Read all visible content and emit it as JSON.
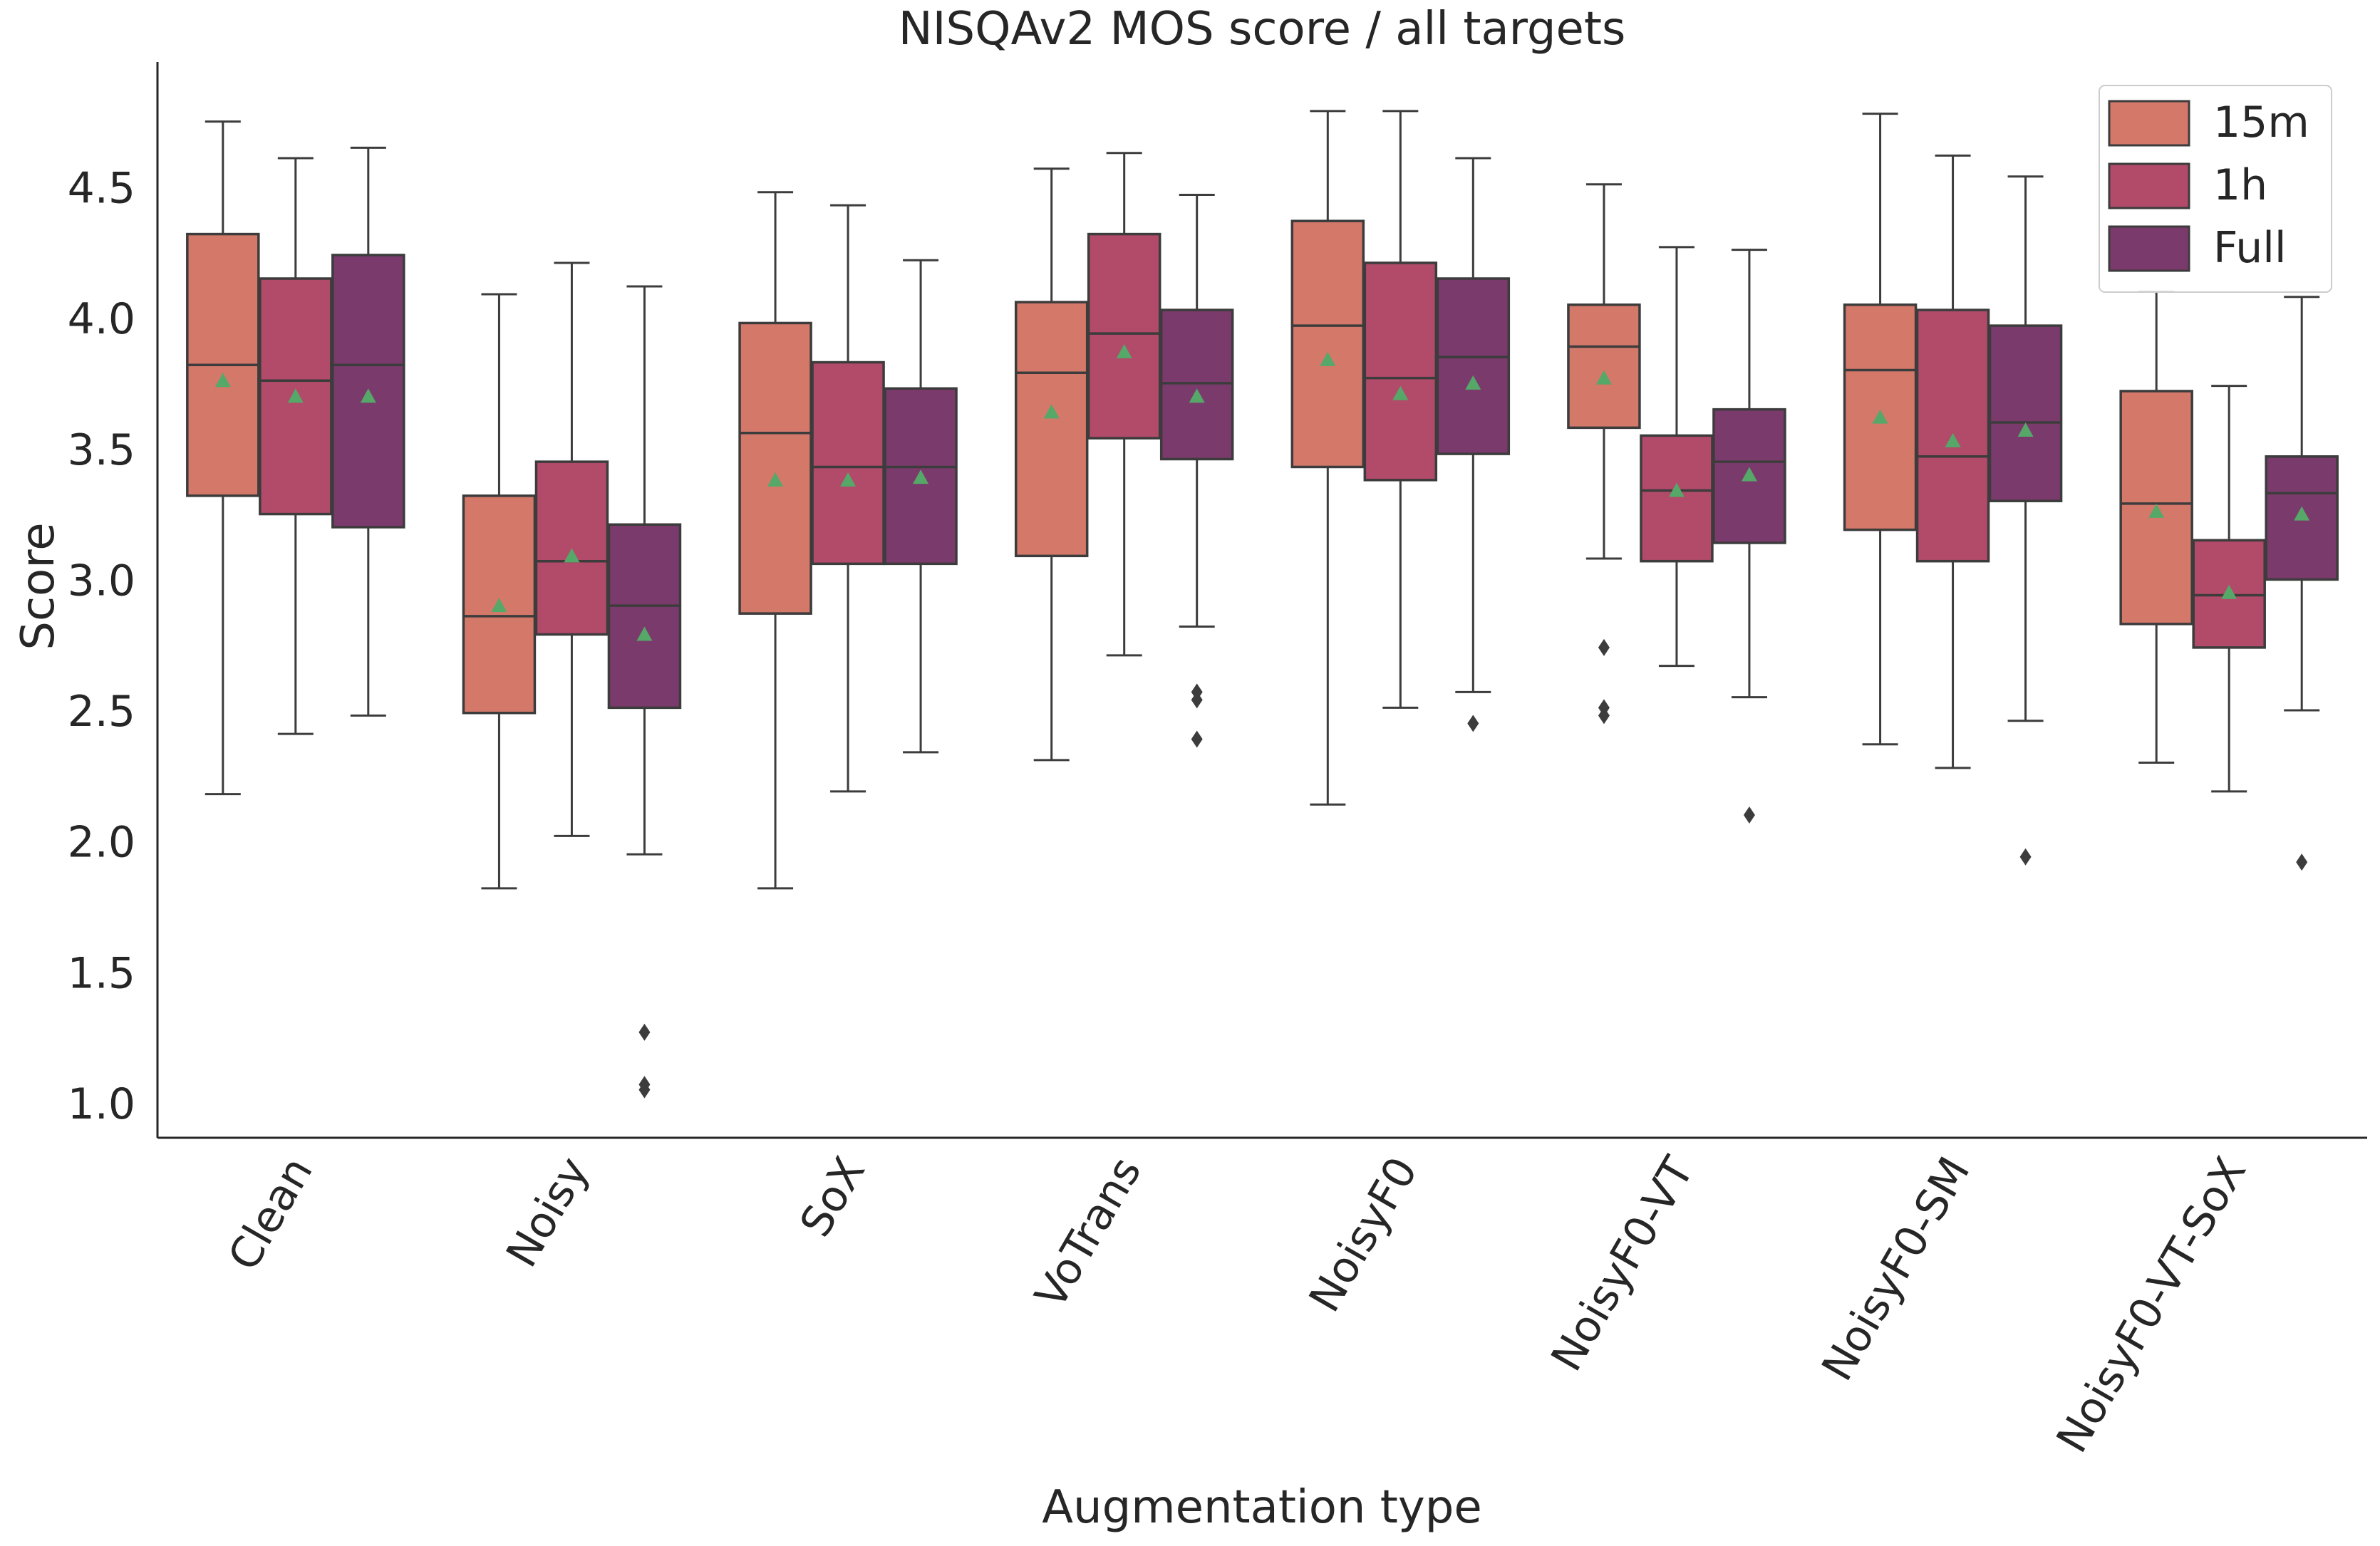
{
  "chart_data": {
    "type": "box",
    "title": "NISQAv2 MOS score / all targets",
    "xlabel": "Augmentation type",
    "ylabel": "Score",
    "ylim": [
      0.87,
      4.97
    ],
    "yticks": [
      1.0,
      1.5,
      2.0,
      2.5,
      3.0,
      3.5,
      4.0,
      4.5
    ],
    "ytick_labels": [
      "1.0",
      "1.5",
      "2.0",
      "2.5",
      "3.0",
      "3.5",
      "4.0",
      "4.5"
    ],
    "categories": [
      "Clean",
      "Noisy",
      "SoX",
      "VoTrans",
      "NoisyF0",
      "NoisyF0-VT",
      "NoisyF0-SM",
      "NoisyF0-VT-SoX"
    ],
    "legend": {
      "position": "top-right",
      "entries": [
        "15m",
        "1h",
        "Full"
      ]
    },
    "series": [
      {
        "name": "15m",
        "color": "#d4786a",
        "boxes": [
          {
            "whislo": 2.18,
            "q1": 3.32,
            "med": 3.82,
            "q3": 4.32,
            "whishi": 4.75,
            "mean": 3.76,
            "fliers": []
          },
          {
            "whislo": 1.82,
            "q1": 2.49,
            "med": 2.86,
            "q3": 3.32,
            "whishi": 4.09,
            "mean": 2.9,
            "fliers": []
          },
          {
            "whislo": 1.82,
            "q1": 2.87,
            "med": 3.56,
            "q3": 3.98,
            "whishi": 4.48,
            "mean": 3.38,
            "fliers": []
          },
          {
            "whislo": 2.31,
            "q1": 3.09,
            "med": 3.79,
            "q3": 4.06,
            "whishi": 4.57,
            "mean": 3.64,
            "fliers": []
          },
          {
            "whislo": 2.14,
            "q1": 3.43,
            "med": 3.97,
            "q3": 4.37,
            "whishi": 4.79,
            "mean": 3.84,
            "fliers": []
          },
          {
            "whislo": 3.08,
            "q1": 3.58,
            "med": 3.89,
            "q3": 4.05,
            "whishi": 4.51,
            "mean": 3.77,
            "fliers": [
              2.48,
              2.51,
              2.74
            ]
          },
          {
            "whislo": 2.37,
            "q1": 3.19,
            "med": 3.8,
            "q3": 4.05,
            "whishi": 4.78,
            "mean": 3.62,
            "fliers": []
          },
          {
            "whislo": 2.3,
            "q1": 2.83,
            "med": 3.29,
            "q3": 3.72,
            "whishi": 4.1,
            "mean": 3.26,
            "fliers": []
          }
        ]
      },
      {
        "name": "1h",
        "color": "#b24a6a",
        "boxes": [
          {
            "whislo": 2.41,
            "q1": 3.25,
            "med": 3.76,
            "q3": 4.15,
            "whishi": 4.61,
            "mean": 3.7,
            "fliers": []
          },
          {
            "whislo": 2.02,
            "q1": 2.79,
            "med": 3.07,
            "q3": 3.45,
            "whishi": 4.21,
            "mean": 3.09,
            "fliers": []
          },
          {
            "whislo": 2.19,
            "q1": 3.06,
            "med": 3.43,
            "q3": 3.83,
            "whishi": 4.43,
            "mean": 3.38,
            "fliers": []
          },
          {
            "whislo": 2.71,
            "q1": 3.54,
            "med": 3.94,
            "q3": 4.32,
            "whishi": 4.63,
            "mean": 3.87,
            "fliers": []
          },
          {
            "whislo": 2.51,
            "q1": 3.38,
            "med": 3.77,
            "q3": 4.21,
            "whishi": 4.79,
            "mean": 3.71,
            "fliers": []
          },
          {
            "whislo": 2.67,
            "q1": 3.07,
            "med": 3.34,
            "q3": 3.55,
            "whishi": 4.27,
            "mean": 3.34,
            "fliers": []
          },
          {
            "whislo": 2.28,
            "q1": 3.07,
            "med": 3.47,
            "q3": 4.03,
            "whishi": 4.62,
            "mean": 3.53,
            "fliers": []
          },
          {
            "whislo": 2.19,
            "q1": 2.74,
            "med": 2.94,
            "q3": 3.15,
            "whishi": 3.74,
            "mean": 2.95,
            "fliers": []
          }
        ]
      },
      {
        "name": "Full",
        "color": "#7b3a6c",
        "boxes": [
          {
            "whislo": 2.48,
            "q1": 3.2,
            "med": 3.82,
            "q3": 4.24,
            "whishi": 4.65,
            "mean": 3.7,
            "fliers": []
          },
          {
            "whislo": 1.95,
            "q1": 2.51,
            "med": 2.9,
            "q3": 3.21,
            "whishi": 4.12,
            "mean": 2.79,
            "fliers": [
              1.05,
              1.07,
              1.27
            ]
          },
          {
            "whislo": 2.34,
            "q1": 3.06,
            "med": 3.43,
            "q3": 3.73,
            "whishi": 4.22,
            "mean": 3.39,
            "fliers": []
          },
          {
            "whislo": 2.82,
            "q1": 3.46,
            "med": 3.75,
            "q3": 4.03,
            "whishi": 4.47,
            "mean": 3.7,
            "fliers": [
              2.39,
              2.54,
              2.57
            ]
          },
          {
            "whislo": 2.57,
            "q1": 3.48,
            "med": 3.85,
            "q3": 4.15,
            "whishi": 4.61,
            "mean": 3.75,
            "fliers": [
              2.45
            ]
          },
          {
            "whislo": 2.55,
            "q1": 3.14,
            "med": 3.45,
            "q3": 3.65,
            "whishi": 4.26,
            "mean": 3.4,
            "fliers": [
              2.1
            ]
          },
          {
            "whislo": 2.46,
            "q1": 3.3,
            "med": 3.6,
            "q3": 3.97,
            "whishi": 4.54,
            "mean": 3.57,
            "fliers": [
              1.94
            ]
          },
          {
            "whislo": 2.5,
            "q1": 3.0,
            "med": 3.33,
            "q3": 3.47,
            "whishi": 4.08,
            "mean": 3.25,
            "fliers": [
              1.92
            ]
          }
        ]
      }
    ],
    "mean_marker_color": "#55a868",
    "line_color": "#3c3c3c"
  }
}
